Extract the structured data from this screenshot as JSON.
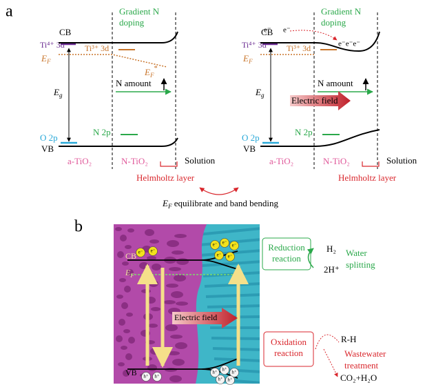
{
  "panel_a": {
    "label": "a",
    "left": {
      "doping": [
        "Gradient N",
        "doping"
      ],
      "cb": "CB",
      "ti4": "Ti⁴⁺ 3d",
      "ti3": "Ti³⁺ 3d",
      "ef": {
        "symbol": "E",
        "sub": "F"
      },
      "ef_star": {
        "symbol": "E",
        "sub": "F",
        "sup": "*"
      },
      "eg": {
        "symbol": "E",
        "sub": "g"
      },
      "n_amount": "N amount",
      "o2p": "O 2p",
      "n2p": "N 2p",
      "vb": "VB",
      "a_tio2": "a-TiO₂",
      "n_tio2": "N-TiO₂",
      "solution": "Solution",
      "helmholtz": "Helmholtz layer"
    },
    "right": {
      "doping": [
        "Gradient N",
        "doping"
      ],
      "cb": "CB",
      "ti4": "Ti⁴⁺ 3d",
      "ti3": "Ti³⁺ 3d",
      "ef": {
        "symbol": "E",
        "sub": "F"
      },
      "eg": {
        "symbol": "E",
        "sub": "g"
      },
      "n_amount": "N amount",
      "electrons": [
        "e⁻",
        "e⁻",
        "e⁻e⁻e⁻"
      ],
      "electric_field": "Electric field",
      "o2p": "O 2p",
      "n2p": "N 2p",
      "vb": "VB",
      "a_tio2": "a-TiO₂",
      "n_tio2": "N-TiO₂",
      "solution": "Solution",
      "helmholtz": "Helmholtz layer"
    },
    "caption": {
      "symbol": "E",
      "sub": "F",
      "text": " equilibrate and band bending"
    }
  },
  "panel_b": {
    "label": "b",
    "cb": "CB",
    "ef": {
      "symbol": "E",
      "sub": "F"
    },
    "vb": "VB",
    "electron": "e⁻",
    "hole": "h⁺",
    "electric_field": "Electric field",
    "reduction": [
      "Reduction",
      "reaction"
    ],
    "h2": "H₂",
    "h_plus": "2H⁺",
    "water_splitting": [
      "Water",
      "splitting"
    ],
    "oxidation": [
      "Oxidation",
      "reaction"
    ],
    "rh": "R-H",
    "wastewater": [
      "Wastewater",
      "treatment"
    ],
    "products": "CO₂+H₂O"
  }
}
